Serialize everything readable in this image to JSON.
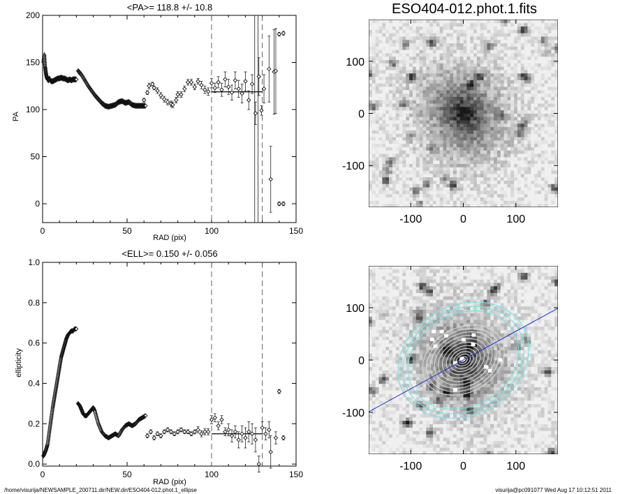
{
  "chart_data": [
    {
      "id": "pa",
      "type": "scatter",
      "title": "<PA>= 118.8 +/-  10.8",
      "xlabel": "RAD (pix)",
      "ylabel": "PA",
      "xlim": [
        0,
        150
      ],
      "ylim": [
        -20,
        200
      ],
      "xticks": [
        "0",
        "50",
        "100",
        "150"
      ],
      "xtick_values": [
        0,
        50,
        100,
        150
      ],
      "yticks": [
        "0",
        "50",
        "100",
        "150",
        "200"
      ],
      "ytick_values": [
        0,
        50,
        100,
        150,
        200
      ],
      "marker": "diamond-open",
      "vlines_dashed": [
        100,
        130
      ],
      "vlines_solid": [
        125.5,
        127.5
      ],
      "mean_segment": {
        "x": [
          100,
          130
        ],
        "y": 118.8
      },
      "curves": [
        {
          "x": [
            0.5,
            1,
            1.5,
            2,
            2.5,
            3,
            3.5,
            4,
            5,
            6,
            7,
            8,
            9,
            10,
            11,
            12,
            13,
            14,
            15,
            16,
            17,
            18,
            19,
            20
          ],
          "y": [
            150,
            158,
            145,
            138,
            134,
            132,
            131,
            133,
            130,
            130,
            131,
            132,
            133,
            133,
            134,
            133,
            133,
            132,
            131,
            132,
            131,
            132,
            132,
            132
          ]
        },
        {
          "x": [
            21,
            23,
            25,
            27,
            29,
            31,
            33,
            35,
            37,
            39,
            41,
            43,
            45,
            47,
            49,
            51,
            53,
            55,
            57,
            59,
            61
          ],
          "y": [
            141,
            137,
            131,
            125,
            120,
            115,
            111,
            107,
            104,
            103,
            104,
            105,
            108,
            109,
            107,
            108,
            105,
            104,
            104,
            104,
            104
          ]
        }
      ],
      "points": [
        {
          "x": 60,
          "y": 110,
          "e": 2
        },
        {
          "x": 62,
          "y": 118,
          "e": 2
        },
        {
          "x": 63,
          "y": 125,
          "e": 3
        },
        {
          "x": 65,
          "y": 127,
          "e": 2
        },
        {
          "x": 66,
          "y": 123,
          "e": 2
        },
        {
          "x": 68,
          "y": 120,
          "e": 3
        },
        {
          "x": 70,
          "y": 115,
          "e": 3
        },
        {
          "x": 72,
          "y": 111,
          "e": 3
        },
        {
          "x": 74,
          "y": 108,
          "e": 3
        },
        {
          "x": 76,
          "y": 106,
          "e": 3
        },
        {
          "x": 77,
          "y": 105,
          "e": 3
        },
        {
          "x": 79,
          "y": 110,
          "e": 3
        },
        {
          "x": 80,
          "y": 116,
          "e": 3
        },
        {
          "x": 82,
          "y": 116,
          "e": 3
        },
        {
          "x": 84,
          "y": 122,
          "e": 3
        },
        {
          "x": 86,
          "y": 129,
          "e": 3
        },
        {
          "x": 88,
          "y": 129,
          "e": 3
        },
        {
          "x": 90,
          "y": 124,
          "e": 3
        },
        {
          "x": 92,
          "y": 130,
          "e": 3
        },
        {
          "x": 94,
          "y": 126,
          "e": 4
        },
        {
          "x": 96,
          "y": 121,
          "e": 4
        },
        {
          "x": 98,
          "y": 119,
          "e": 4
        },
        {
          "x": 100,
          "y": 128,
          "e": 5
        },
        {
          "x": 102,
          "y": 123,
          "e": 5
        },
        {
          "x": 104,
          "y": 129,
          "e": 6
        },
        {
          "x": 106,
          "y": 121,
          "e": 7
        },
        {
          "x": 108,
          "y": 132,
          "e": 8
        },
        {
          "x": 110,
          "y": 124,
          "e": 8
        },
        {
          "x": 112,
          "y": 118,
          "e": 8
        },
        {
          "x": 114,
          "y": 131,
          "e": 9
        },
        {
          "x": 116,
          "y": 122,
          "e": 9
        },
        {
          "x": 118,
          "y": 117,
          "e": 10
        },
        {
          "x": 120,
          "y": 130,
          "e": 10
        },
        {
          "x": 122,
          "y": 110,
          "e": 10
        },
        {
          "x": 124,
          "y": 127,
          "e": 10
        },
        {
          "x": 126,
          "y": 96,
          "e": 12
        },
        {
          "x": 128,
          "y": 135,
          "e": 20
        },
        {
          "x": 129.5,
          "y": 99,
          "e": 5
        },
        {
          "x": 131,
          "y": 122,
          "e": 15
        },
        {
          "x": 134,
          "y": 143,
          "e": 35
        },
        {
          "x": 137,
          "y": 140,
          "e": 45
        },
        {
          "x": 135,
          "y": 26,
          "e": 35
        },
        {
          "x": 138,
          "y": 141,
          "e": 45
        },
        {
          "x": 140,
          "y": 180,
          "e": 2
        },
        {
          "x": 142.5,
          "y": 181,
          "e": 2
        },
        {
          "x": 140,
          "y": 0,
          "e": 2
        },
        {
          "x": 142.5,
          "y": 0,
          "e": 2
        }
      ]
    },
    {
      "id": "ell",
      "type": "scatter",
      "title": "<ELL>= 0.150 +/-  0.056",
      "xlabel": "RAD (pix)",
      "ylabel": "ellipticity",
      "xlim": [
        0,
        150
      ],
      "ylim": [
        -0.01,
        1.0
      ],
      "xticks": [
        "0",
        "50",
        "100",
        "150"
      ],
      "xtick_values": [
        0,
        50,
        100,
        150
      ],
      "yticks": [
        "0.0",
        "0.2",
        "0.4",
        "0.6",
        "0.8",
        "1.0"
      ],
      "ytick_values": [
        0,
        0.2,
        0.4,
        0.6,
        0.8,
        1.0
      ],
      "marker": "diamond-open",
      "vlines_dashed": [
        100,
        130
      ],
      "mean_segment": {
        "x": [
          100,
          130
        ],
        "y": 0.15
      },
      "curves": [
        {
          "x": [
            0.5,
            1,
            2,
            3,
            4,
            5,
            6,
            7,
            8,
            9,
            10,
            11,
            12,
            13,
            14,
            15,
            16,
            17,
            18,
            19,
            20
          ],
          "y": [
            0.04,
            0.05,
            0.07,
            0.1,
            0.16,
            0.22,
            0.28,
            0.33,
            0.38,
            0.43,
            0.48,
            0.53,
            0.56,
            0.59,
            0.62,
            0.64,
            0.65,
            0.66,
            0.66,
            0.67,
            0.67
          ]
        },
        {
          "x": [
            21,
            22,
            23,
            24,
            25,
            26,
            27,
            28,
            29,
            30,
            31,
            33,
            35,
            37,
            39,
            41,
            43,
            45,
            47,
            49,
            51,
            53,
            55,
            57,
            59,
            61
          ],
          "y": [
            0.3,
            0.29,
            0.27,
            0.25,
            0.24,
            0.24,
            0.25,
            0.26,
            0.27,
            0.28,
            0.26,
            0.2,
            0.16,
            0.14,
            0.13,
            0.14,
            0.15,
            0.14,
            0.17,
            0.19,
            0.2,
            0.19,
            0.2,
            0.22,
            0.23,
            0.24
          ]
        }
      ],
      "points": [
        {
          "x": 62,
          "y": 0.14,
          "e": 0.01
        },
        {
          "x": 64,
          "y": 0.16,
          "e": 0.01
        },
        {
          "x": 66,
          "y": 0.13,
          "e": 0.01
        },
        {
          "x": 68,
          "y": 0.15,
          "e": 0.01
        },
        {
          "x": 70,
          "y": 0.14,
          "e": 0.01
        },
        {
          "x": 72,
          "y": 0.16,
          "e": 0.01
        },
        {
          "x": 74,
          "y": 0.17,
          "e": 0.01
        },
        {
          "x": 76,
          "y": 0.16,
          "e": 0.01
        },
        {
          "x": 78,
          "y": 0.15,
          "e": 0.01
        },
        {
          "x": 80,
          "y": 0.16,
          "e": 0.01
        },
        {
          "x": 82,
          "y": 0.17,
          "e": 0.01
        },
        {
          "x": 84,
          "y": 0.16,
          "e": 0.01
        },
        {
          "x": 86,
          "y": 0.16,
          "e": 0.01
        },
        {
          "x": 88,
          "y": 0.15,
          "e": 0.01
        },
        {
          "x": 90,
          "y": 0.16,
          "e": 0.01
        },
        {
          "x": 92,
          "y": 0.17,
          "e": 0.015
        },
        {
          "x": 94,
          "y": 0.15,
          "e": 0.015
        },
        {
          "x": 96,
          "y": 0.16,
          "e": 0.015
        },
        {
          "x": 98,
          "y": 0.16,
          "e": 0.015
        },
        {
          "x": 100,
          "y": 0.22,
          "e": 0.02
        },
        {
          "x": 102,
          "y": 0.23,
          "e": 0.02
        },
        {
          "x": 104,
          "y": 0.19,
          "e": 0.02
        },
        {
          "x": 106,
          "y": 0.22,
          "e": 0.02
        },
        {
          "x": 108,
          "y": 0.16,
          "e": 0.02
        },
        {
          "x": 110,
          "y": 0.17,
          "e": 0.03
        },
        {
          "x": 112,
          "y": 0.14,
          "e": 0.03
        },
        {
          "x": 114,
          "y": 0.16,
          "e": 0.03
        },
        {
          "x": 116,
          "y": 0.12,
          "e": 0.04
        },
        {
          "x": 118,
          "y": 0.15,
          "e": 0.04
        },
        {
          "x": 120,
          "y": 0.13,
          "e": 0.05
        },
        {
          "x": 122,
          "y": 0.16,
          "e": 0.05
        },
        {
          "x": 124,
          "y": 0.15,
          "e": 0.05
        },
        {
          "x": 126,
          "y": 0.12,
          "e": 0.06
        },
        {
          "x": 128,
          "y": 0.0,
          "e": 0.04
        },
        {
          "x": 130,
          "y": 0.18,
          "e": 0.03
        },
        {
          "x": 132,
          "y": 0.15,
          "e": 0.03
        },
        {
          "x": 134,
          "y": 0.17,
          "e": 0.04
        },
        {
          "x": 135,
          "y": 0.06,
          "e": 0.08
        },
        {
          "x": 138,
          "y": 0.13,
          "e": 0.03
        },
        {
          "x": 140,
          "y": 0.36,
          "e": 0.01
        },
        {
          "x": 142.5,
          "y": 0.13,
          "e": 0.01
        }
      ]
    },
    {
      "id": "img-top",
      "type": "heatmap",
      "title": "ESO404-012.phot.1.fits",
      "xlim": [
        -180,
        180
      ],
      "ylim": [
        -180,
        180
      ],
      "xticks": [
        "-100",
        "0",
        "100"
      ],
      "xtick_values": [
        -100,
        0,
        100
      ],
      "yticks": [
        "100",
        "0",
        "-100"
      ],
      "ytick_values": [
        100,
        0,
        -100
      ],
      "colormap": "grayscale-inverted",
      "galaxy": {
        "pa_deg": 118.8,
        "ellipticity": 0.15
      }
    },
    {
      "id": "img-bottom",
      "type": "heatmap",
      "title": "",
      "xlim": [
        -180,
        180
      ],
      "ylim": [
        -180,
        180
      ],
      "xticks": [
        "-100",
        "0",
        "100"
      ],
      "xtick_values": [
        -100,
        0,
        100
      ],
      "yticks": [
        "100",
        "0",
        "-100"
      ],
      "ytick_values": [
        100,
        0,
        -100
      ],
      "colormap": "grayscale-inverted",
      "overlay": {
        "contour_color": "#6fe3e6",
        "isophote_color": "#dcdcdc",
        "line_color": "#2233cc",
        "line_angle_deg": 28.8
      }
    }
  ],
  "footer": {
    "left": "/home/visurija/NEWSAMPLE_200711.dir/NEW.dir/ESO404-012.phot.1_ellipse",
    "right": "visurija@pc091077  Wed Aug 17 10:12:51 2011"
  }
}
